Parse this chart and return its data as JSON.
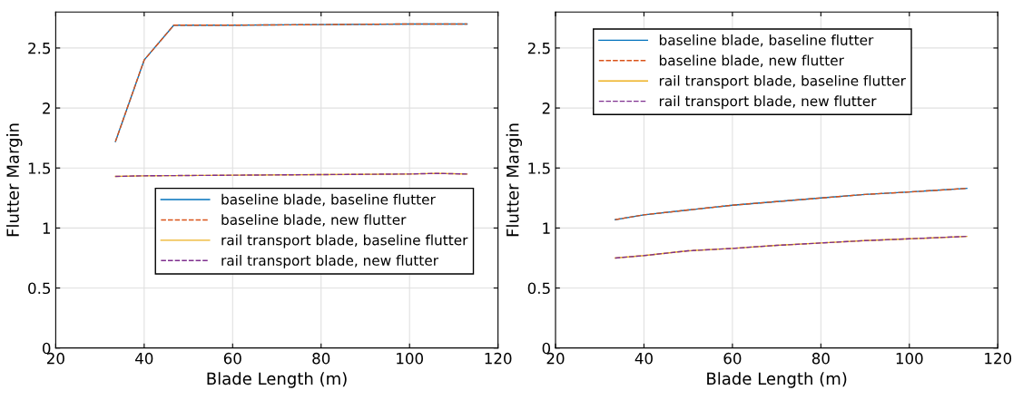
{
  "chart_data": [
    {
      "type": "line",
      "xlabel": "Blade Length (m)",
      "ylabel": "Flutter Margin",
      "xlim": [
        20,
        120
      ],
      "xticks": [
        20,
        40,
        60,
        80,
        100,
        120
      ],
      "ylim": [
        0,
        2.8
      ],
      "yticks": [
        0,
        0.5,
        1,
        1.5,
        2,
        2.5
      ],
      "grid": true,
      "legend": "bottom right",
      "series": [
        {
          "name": "baseline blade, baseline flutter",
          "color": "#0072bd",
          "line_style": "solid",
          "x": [
            33.5,
            40,
            46.7,
            60,
            80,
            100,
            113
          ],
          "values": [
            1.72,
            2.4,
            2.69,
            2.69,
            2.695,
            2.7,
            2.7
          ]
        },
        {
          "name": "baseline blade, new flutter",
          "color": "#d95319",
          "line_style": "dashed",
          "x": [
            33.5,
            40,
            46.7,
            60,
            80,
            100,
            113
          ],
          "values": [
            1.72,
            2.4,
            2.69,
            2.69,
            2.695,
            2.7,
            2.7
          ]
        },
        {
          "name": "rail transport blade, baseline flutter",
          "color": "#edb120",
          "line_style": "solid",
          "x": [
            33.5,
            40,
            60,
            80,
            100,
            106,
            113
          ],
          "values": [
            1.43,
            1.435,
            1.44,
            1.445,
            1.45,
            1.455,
            1.45
          ]
        },
        {
          "name": "rail transport blade, new flutter",
          "color": "#7e2f8e",
          "line_style": "dashed",
          "x": [
            33.5,
            40,
            60,
            80,
            100,
            106,
            113
          ],
          "values": [
            1.43,
            1.435,
            1.44,
            1.445,
            1.45,
            1.455,
            1.45
          ]
        }
      ]
    },
    {
      "type": "line",
      "xlabel": "Blade Length (m)",
      "ylabel": "Flutter Margin",
      "xlim": [
        20,
        120
      ],
      "xticks": [
        20,
        40,
        60,
        80,
        100,
        120
      ],
      "ylim": [
        0,
        2.8
      ],
      "yticks": [
        0,
        0.5,
        1,
        1.5,
        2,
        2.5
      ],
      "grid": true,
      "legend": "top left",
      "series": [
        {
          "name": "baseline blade, baseline flutter",
          "color": "#0072bd",
          "line_style": "solid",
          "x": [
            33.5,
            40,
            50,
            60,
            70,
            80,
            90,
            100,
            113
          ],
          "values": [
            1.07,
            1.11,
            1.15,
            1.19,
            1.22,
            1.25,
            1.28,
            1.3,
            1.33
          ]
        },
        {
          "name": "baseline blade, new flutter",
          "color": "#d95319",
          "line_style": "dashed",
          "x": [
            33.5,
            40,
            50,
            60,
            70,
            80,
            90,
            100,
            113
          ],
          "values": [
            1.07,
            1.11,
            1.15,
            1.19,
            1.22,
            1.25,
            1.28,
            1.3,
            1.33
          ]
        },
        {
          "name": "rail transport blade, baseline flutter",
          "color": "#edb120",
          "line_style": "solid",
          "x": [
            33.5,
            40,
            50,
            60,
            70,
            80,
            90,
            100,
            113
          ],
          "values": [
            0.75,
            0.77,
            0.81,
            0.83,
            0.855,
            0.875,
            0.895,
            0.91,
            0.93
          ]
        },
        {
          "name": "rail transport blade, new flutter",
          "color": "#7e2f8e",
          "line_style": "dashed",
          "x": [
            33.5,
            40,
            50,
            60,
            70,
            80,
            90,
            100,
            113
          ],
          "values": [
            0.75,
            0.77,
            0.81,
            0.83,
            0.855,
            0.875,
            0.895,
            0.91,
            0.93
          ]
        }
      ]
    }
  ]
}
